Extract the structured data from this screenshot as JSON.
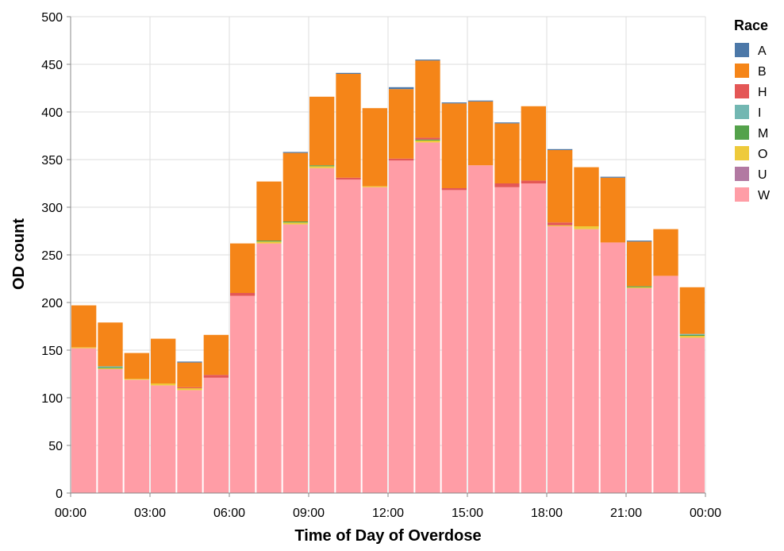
{
  "chart_data": {
    "type": "bar",
    "stacked": true,
    "title": "",
    "xlabel": "Time of Day of Overdose",
    "ylabel": "OD count",
    "ylim": [
      0,
      500
    ],
    "y_ticks": [
      0,
      50,
      100,
      150,
      200,
      250,
      300,
      350,
      400,
      450,
      500
    ],
    "x_range_hours": [
      0,
      24
    ],
    "x_tick_hours": [
      0,
      3,
      6,
      9,
      12,
      15,
      18,
      21,
      24
    ],
    "x_tick_labels": [
      "00:00",
      "03:00",
      "06:00",
      "09:00",
      "12:00",
      "15:00",
      "18:00",
      "21:00",
      "00:00"
    ],
    "bin_hours": 1,
    "categories": [
      "00:00",
      "01:00",
      "02:00",
      "03:00",
      "04:00",
      "05:00",
      "06:00",
      "07:00",
      "08:00",
      "09:00",
      "10:00",
      "11:00",
      "12:00",
      "13:00",
      "14:00",
      "15:00",
      "16:00",
      "17:00",
      "18:00",
      "19:00",
      "20:00",
      "21:00",
      "22:00",
      "23:00"
    ],
    "grid": true,
    "legend": {
      "title": "Race",
      "position": "top-right"
    },
    "series": [
      {
        "name": "W",
        "color": "#ff9da6",
        "values": [
          152,
          130,
          119,
          113,
          108,
          121,
          207,
          262,
          282,
          341,
          329,
          321,
          349,
          368,
          318,
          344,
          321,
          325,
          280,
          277,
          263,
          215,
          228,
          163
        ]
      },
      {
        "name": "U",
        "color": "#b279a2",
        "values": [
          0,
          0,
          0,
          0,
          0,
          0,
          0,
          0,
          0,
          0,
          0,
          0,
          0,
          0,
          0,
          0,
          0,
          0,
          0,
          0,
          0,
          0,
          0,
          0
        ]
      },
      {
        "name": "O",
        "color": "#eeca3b",
        "values": [
          1,
          1,
          1,
          2,
          2,
          0,
          0,
          2,
          2,
          2,
          0,
          1,
          0,
          2,
          0,
          0,
          0,
          0,
          1,
          3,
          0,
          1,
          0,
          2
        ]
      },
      {
        "name": "M",
        "color": "#54a24b",
        "values": [
          0,
          1,
          0,
          0,
          0,
          0,
          0,
          1,
          1,
          1,
          0,
          0,
          0,
          1,
          0,
          0,
          0,
          0,
          0,
          0,
          0,
          1,
          0,
          1
        ]
      },
      {
        "name": "I",
        "color": "#72b7b2",
        "values": [
          0,
          1,
          0,
          0,
          0,
          0,
          0,
          0,
          0,
          0,
          0,
          0,
          0,
          0,
          0,
          0,
          0,
          0,
          0,
          0,
          0,
          0,
          0,
          1
        ]
      },
      {
        "name": "H",
        "color": "#e45756",
        "values": [
          0,
          0,
          0,
          0,
          1,
          3,
          3,
          0,
          0,
          0,
          2,
          0,
          2,
          2,
          2,
          0,
          4,
          3,
          3,
          0,
          0,
          0,
          0,
          0
        ]
      },
      {
        "name": "B",
        "color": "#f58518",
        "values": [
          44,
          46,
          27,
          47,
          26,
          42,
          52,
          62,
          72,
          72,
          109,
          82,
          73,
          81,
          89,
          67,
          63,
          78,
          76,
          62,
          68,
          47,
          49,
          49
        ]
      },
      {
        "name": "A",
        "color": "#4c78a8",
        "values": [
          0,
          0,
          0,
          0,
          1,
          0,
          0,
          0,
          1,
          0,
          1,
          0,
          2,
          1,
          1,
          1,
          1,
          0,
          1,
          0,
          1,
          1,
          0,
          0
        ]
      }
    ],
    "legend_order": [
      "A",
      "B",
      "H",
      "I",
      "M",
      "O",
      "U",
      "W"
    ]
  }
}
